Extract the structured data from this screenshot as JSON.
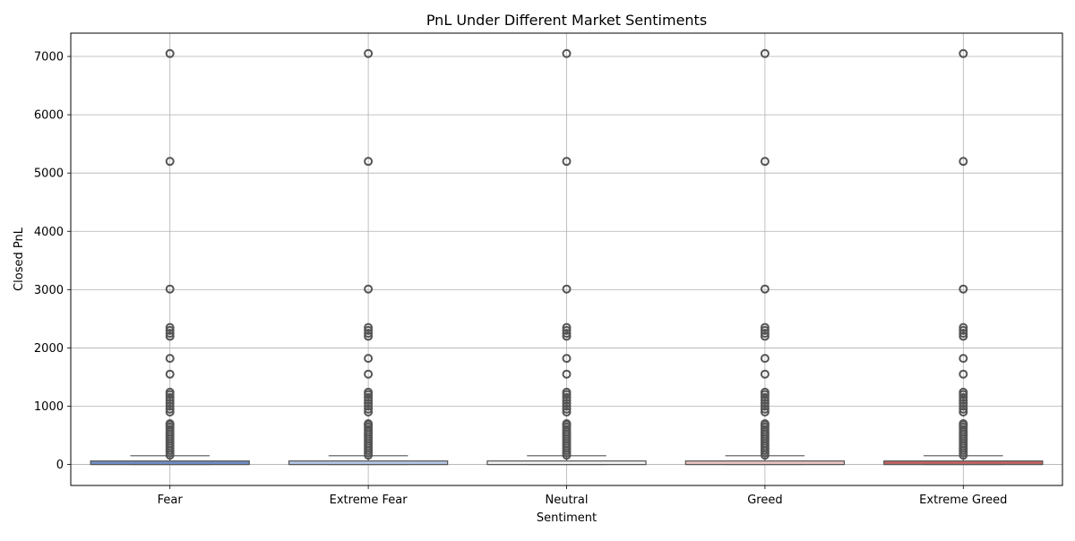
{
  "chart_data": {
    "type": "box",
    "title": "PnL Under Different Market Sentiments",
    "xlabel": "Sentiment",
    "ylabel": "Closed PnL",
    "categories": [
      "Fear",
      "Extreme Fear",
      "Neutral",
      "Greed",
      "Extreme Greed"
    ],
    "colors": [
      "#6f8fc5",
      "#b5c8e9",
      "#f2f2f2",
      "#ecc3c3",
      "#c46465"
    ],
    "ylim": [
      -360,
      7400
    ],
    "yticks": [
      0,
      1000,
      2000,
      3000,
      4000,
      5000,
      6000,
      7000
    ],
    "grid": true,
    "boxes": [
      {
        "q1": 0,
        "median": 0,
        "q3": 60,
        "whisker_low": 0,
        "whisker_high": 150
      },
      {
        "q1": 0,
        "median": 0,
        "q3": 60,
        "whisker_low": 0,
        "whisker_high": 150
      },
      {
        "q1": 0,
        "median": 0,
        "q3": 60,
        "whisker_low": 0,
        "whisker_high": 150
      },
      {
        "q1": 0,
        "median": 0,
        "q3": 60,
        "whisker_low": 0,
        "whisker_high": 150
      },
      {
        "q1": 0,
        "median": 0,
        "q3": 60,
        "whisker_low": 0,
        "whisker_high": 150
      }
    ],
    "outliers": [
      160,
      200,
      240,
      280,
      320,
      360,
      400,
      440,
      480,
      520,
      560,
      600,
      640,
      680,
      700,
      900,
      950,
      1000,
      1050,
      1100,
      1150,
      1200,
      1240,
      1550,
      1820,
      2200,
      2250,
      2300,
      2350,
      3010,
      5200,
      7050
    ]
  }
}
